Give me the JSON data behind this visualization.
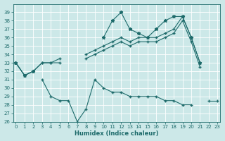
{
  "xlabel": "Humidex (Indice chaleur)",
  "background_color": "#cce8e8",
  "line_color": "#1e6b6b",
  "grid_color": "#b8d8d8",
  "x_values": [
    0,
    1,
    2,
    3,
    4,
    5,
    6,
    7,
    8,
    9,
    10,
    11,
    12,
    13,
    14,
    15,
    16,
    17,
    18,
    19,
    20,
    21,
    22,
    23
  ],
  "line1_y": [
    33,
    31.5,
    32,
    null,
    null,
    null,
    null,
    null,
    null,
    null,
    36,
    38,
    39,
    37,
    36.5,
    36,
    37,
    38,
    38.5,
    38.5,
    36,
    33,
    null,
    null
  ],
  "line2_y": [
    33,
    31.5,
    32,
    33,
    33,
    33.5,
    null,
    null,
    34,
    34.5,
    35,
    35.5,
    36,
    35.5,
    36,
    36,
    36,
    36.5,
    37,
    38.5,
    36,
    33,
    null,
    null
  ],
  "line3_y": [
    33,
    31.5,
    32,
    33,
    33,
    33,
    null,
    null,
    33.5,
    34,
    34.5,
    35,
    35.5,
    35,
    35.5,
    35.5,
    35.5,
    36,
    36.5,
    38,
    35.5,
    32.5,
    null,
    null
  ],
  "line4_y": [
    null,
    null,
    null,
    31,
    29,
    28.5,
    28.5,
    26,
    27.5,
    31,
    30,
    29.5,
    29.5,
    29,
    29,
    29,
    29,
    28.5,
    28.5,
    28,
    28,
    null,
    28.5,
    28.5
  ],
  "ylim": [
    26,
    40
  ],
  "xlim": [
    -0.3,
    23.3
  ],
  "yticks": [
    26,
    27,
    28,
    29,
    30,
    31,
    32,
    33,
    34,
    35,
    36,
    37,
    38,
    39
  ],
  "xticks": [
    0,
    1,
    2,
    3,
    4,
    5,
    6,
    7,
    8,
    9,
    10,
    11,
    12,
    13,
    14,
    15,
    16,
    17,
    18,
    19,
    20,
    21,
    22,
    23
  ],
  "tick_fontsize": 5,
  "xlabel_fontsize": 6
}
